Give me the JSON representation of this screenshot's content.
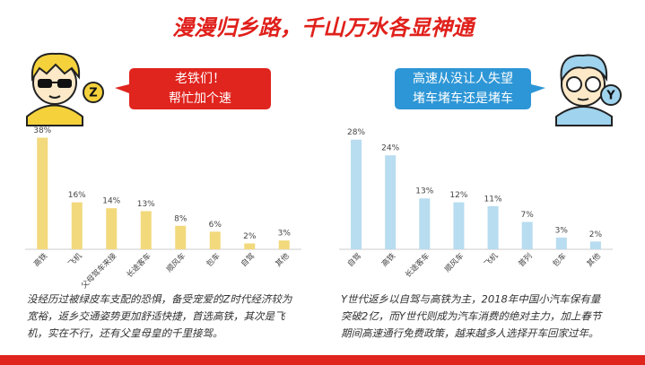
{
  "title": "漫漫归乡路，千山万水各显神通",
  "panels": [
    {
      "badge": "Z",
      "bubble": [
        "老铁们！",
        "帮忙加个速"
      ],
      "caption": [
        "没经历过被绿皮车支配的恐惧，备受宠爱的Z时代经济较为",
        "宽裕，返乡交通姿势更加舒适快捷，首选高铁，其次是飞",
        "机，实在不行，还有父皇母皇的千里接驾。"
      ]
    },
    {
      "badge": "Y",
      "bubble": [
        "高速从没让人失望",
        "堵车堵车还是堵车"
      ],
      "caption": [
        "Y世代返乡以自驾与高铁为主，2018年中国小汽车保有量",
        "突破2亿，而Y世代则成为汽车消费的绝对主力，加上春节",
        "期间高速通行免费政策，越来越多人选择开车回家过年。"
      ]
    }
  ],
  "chart_data": [
    {
      "type": "bar",
      "color": "#f2d97c",
      "ylim": [
        0,
        40
      ],
      "categories": [
        "高铁",
        "飞机",
        "父母驾车来接",
        "长途客车",
        "顺风车",
        "包车",
        "自驾",
        "其他"
      ],
      "values": [
        38,
        16,
        14,
        13,
        8,
        6,
        2,
        3
      ],
      "value_labels": [
        "38%",
        "16%",
        "14%",
        "13%",
        "8%",
        "6%",
        "2%",
        "3%"
      ]
    },
    {
      "type": "bar",
      "color": "#b8dcf0",
      "ylim": [
        0,
        30
      ],
      "categories": [
        "自驾",
        "高铁",
        "长途客车",
        "顺风车",
        "飞机",
        "普列",
        "包车",
        "其他"
      ],
      "values": [
        28,
        24,
        13,
        12,
        11,
        7,
        3,
        2
      ],
      "value_labels": [
        "28%",
        "24%",
        "13%",
        "12%",
        "11%",
        "7%",
        "3%",
        "2%"
      ]
    }
  ]
}
